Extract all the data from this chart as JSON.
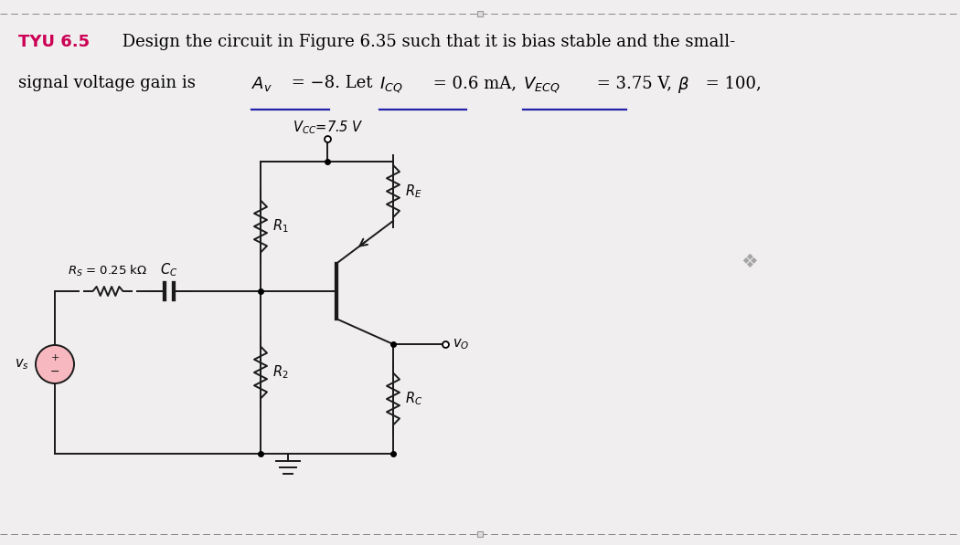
{
  "fig_width": 10.5,
  "fig_height": 5.97,
  "bg_color": "#f0eeee",
  "line_color": "#1a1a1a",
  "title_bold": "TYU 6.5",
  "title_bold_color": "#cc0055",
  "title_rest_line1": " Design the circuit in Figure 6.35 such that it is bias stable and the small-",
  "title_line2_prefix": "signal voltage gain is ",
  "vcc_text": "$V_{CC}$=7.5 V",
  "rs_text": "$R_S$ = 0.25 kΩ",
  "cc_text": "$C_C$",
  "r1_text": "$R_1$",
  "r2_text": "$R_2$",
  "re_text": "$R_E$",
  "rc_text": "$R_C$",
  "vo_text": "$v_O$",
  "vs_text": "$v_s$",
  "ornament": "❖",
  "ul_color": "#2222aa",
  "dot_color": "#aaaaaa"
}
